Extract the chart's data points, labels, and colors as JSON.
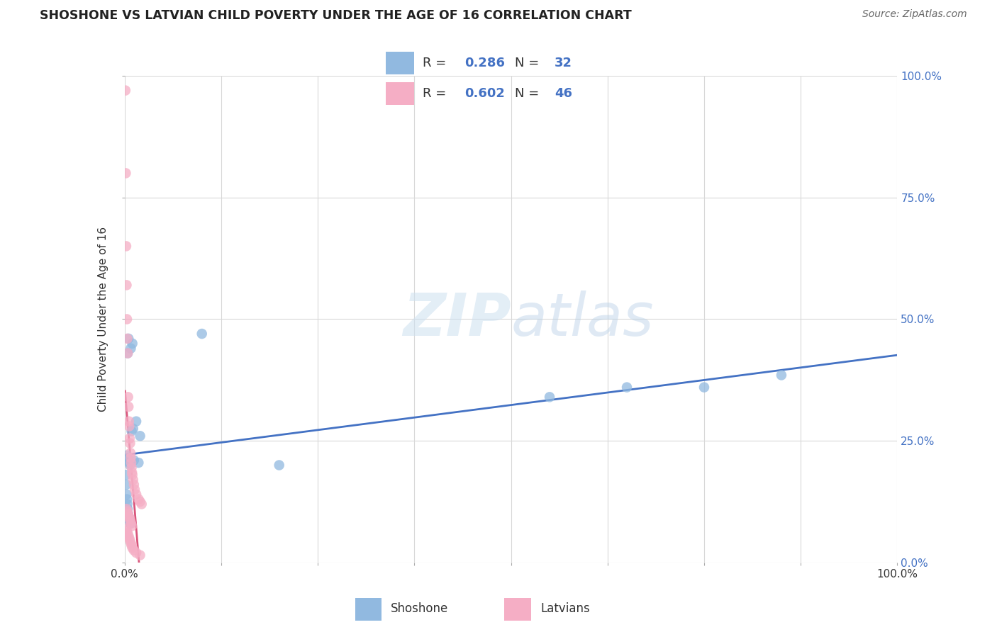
{
  "title": "SHOSHONE VS LATVIAN CHILD POVERTY UNDER THE AGE OF 16 CORRELATION CHART",
  "source": "Source: ZipAtlas.com",
  "ylabel": "Child Poverty Under the Age of 16",
  "ytick_labels": [
    "0.0%",
    "25.0%",
    "50.0%",
    "75.0%",
    "100.0%"
  ],
  "ytick_values": [
    0,
    25,
    50,
    75,
    100
  ],
  "xlim": [
    0,
    100
  ],
  "ylim": [
    0,
    100
  ],
  "watermark_zip": "ZIP",
  "watermark_atlas": "atlas",
  "shoshone_color": "#91b9e0",
  "latvian_color": "#f5aec5",
  "shoshone_line_color": "#4472c4",
  "latvian_line_color": "#d9567c",
  "latvian_dash_color": "#dba8bc",
  "shoshone_x": [
    0.4,
    0.5,
    0.8,
    1.0,
    0.3,
    0.4,
    0.5,
    0.6,
    0.7,
    0.9,
    1.1,
    1.5,
    2.0,
    10.0,
    20.0,
    55.0,
    65.0,
    75.0,
    85.0,
    0.15,
    0.2,
    0.25,
    0.3,
    0.35,
    0.4,
    0.45,
    0.5,
    0.55,
    0.65,
    0.75,
    1.2,
    1.8
  ],
  "shoshone_y": [
    43.0,
    46.0,
    44.0,
    45.0,
    22.0,
    21.5,
    21.0,
    20.5,
    20.0,
    27.0,
    27.5,
    29.0,
    26.0,
    47.0,
    20.0,
    34.0,
    36.0,
    36.0,
    38.5,
    18.0,
    16.0,
    14.0,
    13.0,
    12.0,
    11.0,
    10.0,
    9.5,
    9.0,
    8.5,
    8.0,
    21.0,
    20.5
  ],
  "latvian_x": [
    0.1,
    0.15,
    0.2,
    0.25,
    0.3,
    0.35,
    0.4,
    0.45,
    0.5,
    0.55,
    0.6,
    0.65,
    0.7,
    0.75,
    0.8,
    0.85,
    0.9,
    0.95,
    1.0,
    1.1,
    1.2,
    1.3,
    1.5,
    1.8,
    2.0,
    2.2,
    0.2,
    0.3,
    0.4,
    0.5,
    0.6,
    0.7,
    0.8,
    0.9,
    1.0,
    1.2,
    1.5,
    2.0,
    0.25,
    0.35,
    0.45,
    0.55,
    0.65,
    0.75,
    0.85,
    0.95
  ],
  "latvian_y": [
    97.0,
    80.0,
    65.0,
    57.0,
    50.0,
    46.0,
    43.0,
    34.0,
    32.0,
    29.0,
    28.0,
    25.5,
    24.5,
    22.5,
    21.5,
    20.5,
    19.5,
    18.5,
    18.0,
    17.0,
    16.0,
    15.0,
    14.0,
    13.0,
    12.5,
    12.0,
    7.0,
    6.5,
    6.0,
    5.5,
    5.0,
    4.5,
    4.0,
    3.5,
    3.0,
    2.5,
    2.0,
    1.5,
    11.0,
    10.5,
    10.0,
    9.5,
    9.0,
    8.5,
    8.0,
    7.5
  ]
}
